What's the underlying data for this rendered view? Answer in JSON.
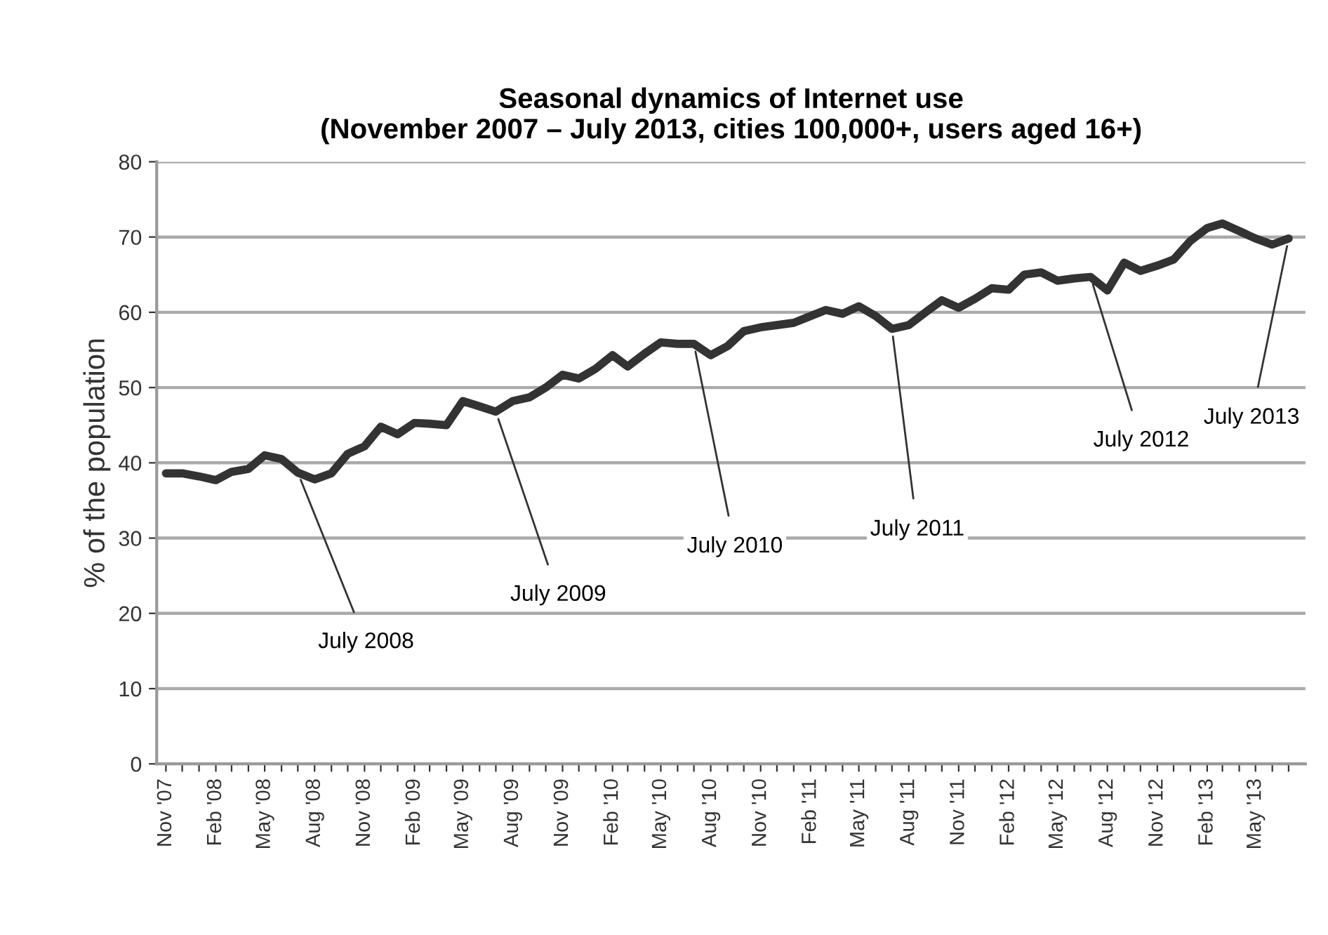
{
  "chart_data": {
    "type": "line",
    "title": "Seasonal dynamics of Internet use\n(November 2007 – July 2013, cities 100,000+, users aged 16+)",
    "ylabel": "% of the population",
    "x": [
      "2007-11",
      "2007-12",
      "2008-01",
      "2008-02",
      "2008-03",
      "2008-04",
      "2008-05",
      "2008-06",
      "2008-07",
      "2008-08",
      "2008-09",
      "2008-10",
      "2008-11",
      "2008-12",
      "2009-01",
      "2009-02",
      "2009-03",
      "2009-04",
      "2009-05",
      "2009-06",
      "2009-07",
      "2009-08",
      "2009-09",
      "2009-10",
      "2009-11",
      "2009-12",
      "2010-01",
      "2010-02",
      "2010-03",
      "2010-04",
      "2010-05",
      "2010-06",
      "2010-07",
      "2010-08",
      "2010-09",
      "2010-10",
      "2010-11",
      "2010-12",
      "2011-01",
      "2011-02",
      "2011-03",
      "2011-04",
      "2011-05",
      "2011-06",
      "2011-07",
      "2011-08",
      "2011-09",
      "2011-10",
      "2011-11",
      "2011-12",
      "2012-01",
      "2012-02",
      "2012-03",
      "2012-04",
      "2012-05",
      "2012-06",
      "2012-07",
      "2012-08",
      "2012-09",
      "2012-10",
      "2012-11",
      "2012-12",
      "2013-01",
      "2013-02",
      "2013-03",
      "2013-04",
      "2013-05",
      "2013-06",
      "2013-07"
    ],
    "series": [
      {
        "color": "#333333",
        "values": [
          38.6,
          38.6,
          38.2,
          37.7,
          38.8,
          39.2,
          41.0,
          40.5,
          38.7,
          37.8,
          38.6,
          41.2,
          42.2,
          44.8,
          43.8,
          45.3,
          45.2,
          45.0,
          48.2,
          47.5,
          46.8,
          48.2,
          48.7,
          50.0,
          51.7,
          51.2,
          52.5,
          54.3,
          52.8,
          54.5,
          56.0,
          55.8,
          55.8,
          54.3,
          55.5,
          57.5,
          58.0,
          58.3,
          58.6,
          59.5,
          60.3,
          59.8,
          60.8,
          59.5,
          57.8,
          58.3,
          60.0,
          61.6,
          60.6,
          61.8,
          63.2,
          63.0,
          65.0,
          65.3,
          64.2,
          64.5,
          64.7,
          62.9,
          66.6,
          65.5,
          66.2,
          67.0,
          69.5,
          71.2,
          71.8,
          70.8,
          69.8,
          69.0,
          69.8
        ]
      }
    ],
    "xlim": [
      "2007-10-15",
      "2013-08-01"
    ],
    "xticks": [
      {
        "value": "2007-11",
        "label": "Nov '07"
      },
      {
        "value": "2007-12",
        "label": null
      },
      {
        "value": "2008-01",
        "label": null
      },
      {
        "value": "2008-02",
        "label": "Feb '08"
      },
      {
        "value": "2008-03",
        "label": null
      },
      {
        "value": "2008-04",
        "label": null
      },
      {
        "value": "2008-05",
        "label": "May '08"
      },
      {
        "value": "2008-06",
        "label": null
      },
      {
        "value": "2008-07",
        "label": null
      },
      {
        "value": "2008-08",
        "label": "Aug '08"
      },
      {
        "value": "2008-09",
        "label": null
      },
      {
        "value": "2008-10",
        "label": null
      },
      {
        "value": "2008-11",
        "label": "Nov '08"
      },
      {
        "value": "2008-12",
        "label": null
      },
      {
        "value": "2009-01",
        "label": null
      },
      {
        "value": "2009-02",
        "label": "Feb '09"
      },
      {
        "value": "2009-03",
        "label": null
      },
      {
        "value": "2009-04",
        "label": null
      },
      {
        "value": "2009-05",
        "label": "May '09"
      },
      {
        "value": "2009-06",
        "label": null
      },
      {
        "value": "2009-07",
        "label": null
      },
      {
        "value": "2009-08",
        "label": "Aug '09"
      },
      {
        "value": "2009-09",
        "label": null
      },
      {
        "value": "2009-10",
        "label": null
      },
      {
        "value": "2009-11",
        "label": "Nov '09"
      },
      {
        "value": "2009-12",
        "label": null
      },
      {
        "value": "2010-01",
        "label": null
      },
      {
        "value": "2010-02",
        "label": "Feb '10"
      },
      {
        "value": "2010-03",
        "label": null
      },
      {
        "value": "2010-04",
        "label": null
      },
      {
        "value": "2010-05",
        "label": "May '10"
      },
      {
        "value": "2010-06",
        "label": null
      },
      {
        "value": "2010-07",
        "label": null
      },
      {
        "value": "2010-08",
        "label": "Aug '10"
      },
      {
        "value": "2010-09",
        "label": null
      },
      {
        "value": "2010-10",
        "label": null
      },
      {
        "value": "2010-11",
        "label": "Nov '10"
      },
      {
        "value": "2010-12",
        "label": null
      },
      {
        "value": "2011-01",
        "label": null
      },
      {
        "value": "2011-02",
        "label": "Feb '11"
      },
      {
        "value": "2011-03",
        "label": null
      },
      {
        "value": "2011-04",
        "label": null
      },
      {
        "value": "2011-05",
        "label": "May '11"
      },
      {
        "value": "2011-06",
        "label": null
      },
      {
        "value": "2011-07",
        "label": null
      },
      {
        "value": "2011-08",
        "label": "Aug '11"
      },
      {
        "value": "2011-09",
        "label": null
      },
      {
        "value": "2011-10",
        "label": null
      },
      {
        "value": "2011-11",
        "label": "Nov '11"
      },
      {
        "value": "2011-12",
        "label": null
      },
      {
        "value": "2012-01",
        "label": null
      },
      {
        "value": "2012-02",
        "label": "Feb '12"
      },
      {
        "value": "2012-03",
        "label": null
      },
      {
        "value": "2012-04",
        "label": null
      },
      {
        "value": "2012-05",
        "label": "May '12"
      },
      {
        "value": "2012-06",
        "label": null
      },
      {
        "value": "2012-07",
        "label": null
      },
      {
        "value": "2012-08",
        "label": "Aug '12"
      },
      {
        "value": "2012-09",
        "label": null
      },
      {
        "value": "2012-10",
        "label": null
      },
      {
        "value": "2012-11",
        "label": "Nov '12"
      },
      {
        "value": "2012-12",
        "label": null
      },
      {
        "value": "2013-01",
        "label": null
      },
      {
        "value": "2013-02",
        "label": "Feb '13"
      },
      {
        "value": "2013-03",
        "label": null
      },
      {
        "value": "2013-04",
        "label": null
      },
      {
        "value": "2013-05",
        "label": "May '13"
      },
      {
        "value": "2013-06",
        "label": null
      },
      {
        "value": "2013-07",
        "label": null
      }
    ],
    "ylim": [
      0,
      80
    ],
    "yticks": [
      0,
      10,
      20,
      30,
      40,
      50,
      60,
      70,
      80
    ],
    "grid": "y",
    "marker": "none",
    "line_style": "solid",
    "legend": false,
    "annotations": [
      {
        "text": "July 2008",
        "x": "2008-07",
        "y": 38.7
      },
      {
        "text": "July 2009",
        "x": "2009-07",
        "y": 46.8
      },
      {
        "text": "July 2010",
        "x": "2010-07",
        "y": 55.8
      },
      {
        "text": "July 2011",
        "x": "2011-07",
        "y": 57.8
      },
      {
        "text": "July 2012",
        "x": "2012-07",
        "y": 64.7
      },
      {
        "text": "July 2013",
        "x": "2013-07",
        "y": 69.8
      }
    ]
  }
}
